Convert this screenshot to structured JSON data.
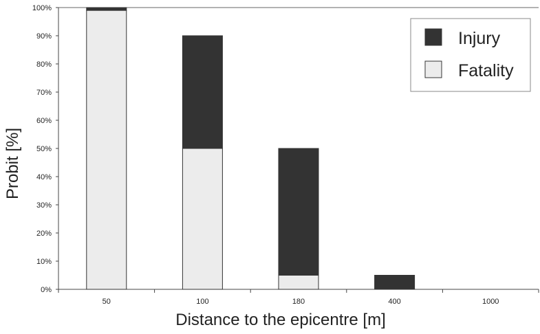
{
  "chart_data": {
    "type": "bar",
    "stacked": true,
    "title": "",
    "xlabel": "Distance to the epicentre [m]",
    "ylabel": "Probit [%]",
    "categories": [
      "50",
      "100",
      "180",
      "400",
      "1000"
    ],
    "series": [
      {
        "name": "Fatality",
        "values": [
          99,
          50,
          5,
          0,
          0
        ],
        "color": "#ececec"
      },
      {
        "name": "Injury",
        "values": [
          1,
          40,
          45,
          5,
          0
        ],
        "color": "#333333"
      }
    ],
    "ylim": [
      0,
      100
    ],
    "yticks": [
      "0%",
      "10%",
      "20%",
      "30%",
      "40%",
      "50%",
      "60%",
      "70%",
      "80%",
      "90%",
      "100%"
    ],
    "grid": {
      "horizontal_top_line": true
    },
    "legend": {
      "position": "top-right",
      "entries": [
        "Injury",
        "Fatality"
      ]
    }
  }
}
